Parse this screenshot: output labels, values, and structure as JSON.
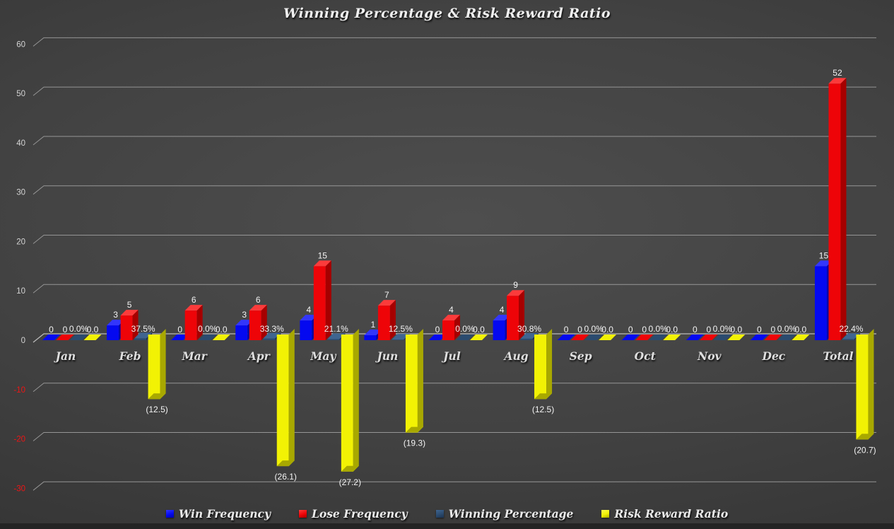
{
  "title": "Winning Percentage & Risk Reward Ratio",
  "chart_data": {
    "type": "bar",
    "title": "Winning Percentage & Risk Reward Ratio",
    "xlabel": "",
    "ylabel": "",
    "ylim": [
      -30,
      60
    ],
    "grid": true,
    "legend_position": "bottom",
    "categories": [
      "Jan",
      "Feb",
      "Mar",
      "Apr",
      "May",
      "Jun",
      "Jul",
      "Aug",
      "Sep",
      "Oct",
      "Nov",
      "Dec",
      "Total"
    ],
    "series": [
      {
        "name": "Win Frequency",
        "color": "#0409f0",
        "color_top": "#3336fb",
        "color_side": "#0105a6",
        "values": [
          0,
          3,
          0,
          3,
          4,
          1,
          0,
          4,
          0,
          0,
          0,
          0,
          15
        ],
        "labels": [
          "0",
          "3",
          "0",
          "3",
          "4",
          "1",
          "0",
          "4",
          "0",
          "0",
          "0",
          "0",
          "15"
        ]
      },
      {
        "name": "Lose Frequency",
        "color": "#ee0408",
        "color_top": "#fb3b3b",
        "color_side": "#a60000",
        "values": [
          0,
          5,
          6,
          6,
          15,
          7,
          4,
          9,
          0,
          0,
          0,
          0,
          52
        ],
        "labels": [
          "0",
          "5",
          "6",
          "6",
          "15",
          "7",
          "4",
          "9",
          "0",
          "0",
          "0",
          "0",
          "52"
        ]
      },
      {
        "name": "Winning Percentage",
        "color": "#2b4b6f",
        "color_top": "#3f6590",
        "color_side": "#1c3350",
        "values": [
          0,
          0.375,
          0,
          0.333,
          0.211,
          0.125,
          0,
          0.308,
          0,
          0,
          0,
          0,
          0.224
        ],
        "labels": [
          "0.0%",
          "37.5%",
          "0.0%",
          "33.3%",
          "21.1%",
          "12.5%",
          "0.0%",
          "30.8%",
          "0.0%",
          "0.0%",
          "0.0%",
          "0.0%",
          "22.4%"
        ]
      },
      {
        "name": "Risk Reward Ratio",
        "color": "#f2f204",
        "color_top": "#fbfb4e",
        "color_side": "#a8a800",
        "values": [
          0,
          -12.5,
          0,
          -26.1,
          -27.2,
          -19.3,
          0,
          -12.5,
          0,
          0,
          0,
          0,
          -20.7
        ],
        "labels": [
          "0.0",
          "(12.5)",
          "0.0",
          "(26.1)",
          "(27.2)",
          "(19.3)",
          "0.0",
          "(12.5)",
          "0.0",
          "0.0",
          "0.0",
          "0.0",
          "(20.7)"
        ]
      }
    ],
    "y_axis": {
      "min": -30,
      "max": 60,
      "step": 10,
      "ticks": [
        60,
        50,
        40,
        30,
        20,
        10,
        0,
        -10,
        -20,
        -30
      ],
      "tick_labels": [
        "60",
        "50",
        "40",
        "30",
        "20",
        "10",
        "0",
        "-10",
        "-20",
        "-30"
      ],
      "positive_color": "#d4d4d4",
      "negative_color": "#ee1515",
      "grid_color": "#9e9e9e",
      "zero_line_color": "#c9c9c9"
    },
    "label_color": "#f3f3f3",
    "category_color": "#dedede"
  }
}
